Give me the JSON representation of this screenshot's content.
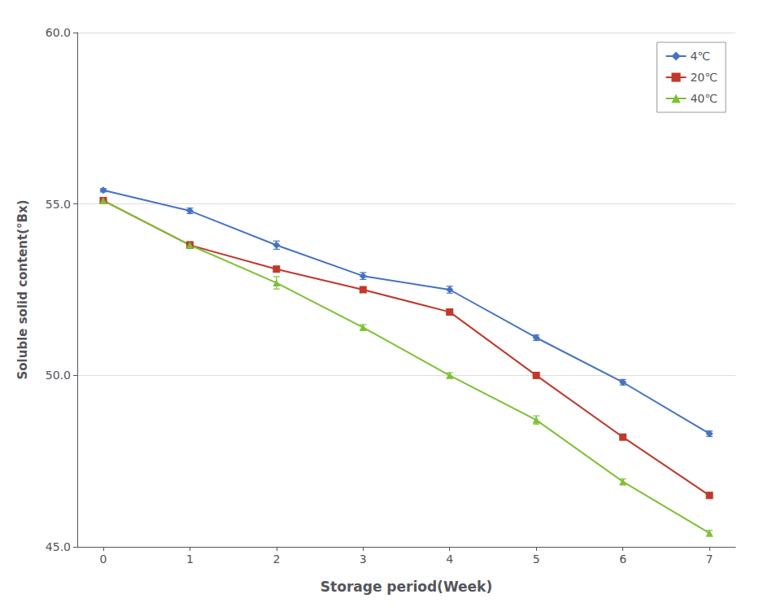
{
  "chart_data": {
    "type": "line",
    "xlabel": "Storage period(Week)",
    "ylabel": "Soluble solid content(°Bx)",
    "x": [
      0,
      1,
      2,
      3,
      4,
      5,
      6,
      7
    ],
    "series": [
      {
        "name": "4℃",
        "color": "#4472C4",
        "marker": "diamond",
        "values": [
          55.4,
          54.8,
          53.8,
          52.9,
          52.5,
          51.1,
          49.8,
          48.3
        ],
        "yerr": [
          0.05,
          0.08,
          0.12,
          0.1,
          0.1,
          0.08,
          0.08,
          0.08
        ]
      },
      {
        "name": "20℃",
        "color": "#C0392B",
        "marker": "square",
        "values": [
          55.1,
          53.8,
          53.1,
          52.5,
          51.85,
          50.0,
          48.2,
          46.5
        ],
        "yerr": [
          0.08,
          0.1,
          0.08,
          0.08,
          0.08,
          0.08,
          0.08,
          0.08
        ]
      },
      {
        "name": "40℃",
        "color": "#7DC134",
        "marker": "triangle",
        "values": [
          55.1,
          53.8,
          52.7,
          51.4,
          50.0,
          48.7,
          46.9,
          45.4
        ],
        "yerr": [
          0.08,
          0.08,
          0.18,
          0.08,
          0.08,
          0.12,
          0.08,
          0.08
        ]
      }
    ],
    "xlim": [
      -0.3,
      7.3
    ],
    "xticks": [
      0,
      1,
      2,
      3,
      4,
      5,
      6,
      7
    ],
    "ylim": [
      45.0,
      60.0
    ],
    "yticks": [
      {
        "value": 45,
        "label": "45.0"
      },
      {
        "value": 50,
        "label": "50.0"
      },
      {
        "value": 55,
        "label": "55.0"
      },
      {
        "value": 60,
        "label": "60.0"
      }
    ],
    "grid": true,
    "legend": "upper right"
  }
}
